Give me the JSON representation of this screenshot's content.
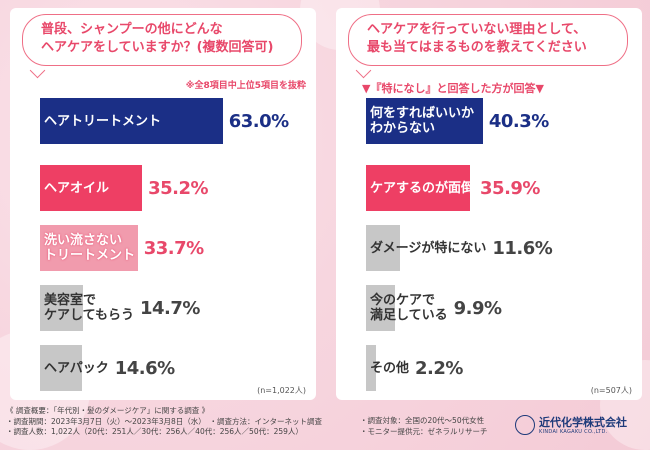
{
  "left": {
    "question": [
      "普段、シャンプーの他にどんな",
      "ヘアケアをしていますか？(複数回答可)"
    ],
    "note": "※全8項目中上位5項目を抜粋",
    "n": "(n=1,022人)"
  },
  "right": {
    "question": [
      "ヘアケアを行っていない理由として、",
      "最も当てはまるものを教えてください"
    ],
    "sub": "▼『特になし』と回答した方が回答▼",
    "n": "(n=507人)"
  },
  "chart_data": [
    {
      "type": "bar",
      "categories": [
        "ヘアトリートメント",
        "ヘアオイル",
        "洗い流さないトリートメント",
        "美容室でケアしてもらう",
        "ヘアパック"
      ],
      "values": [
        63.0,
        35.2,
        33.7,
        14.7,
        14.6
      ],
      "value_labels": [
        "63.0%",
        "35.2%",
        "33.7%",
        "14.7%",
        "14.6%"
      ],
      "colors": [
        "#1b2f86",
        "#ee3f64",
        "#f19bad",
        "#c7c7c7",
        "#c7c7c7"
      ],
      "unit": "%"
    },
    {
      "type": "bar",
      "categories": [
        "何をすればいいかわからない",
        "ケアするのが面倒",
        "ダメージが特にない",
        "今のケアで満足している",
        "その他"
      ],
      "values": [
        40.3,
        35.9,
        11.6,
        9.9,
        2.2
      ],
      "value_labels": [
        "40.3%",
        "35.9%",
        "11.6%",
        "9.9%",
        "2.2%"
      ],
      "colors": [
        "#1b2f86",
        "#ee3f64",
        "#c7c7c7",
        "#c7c7c7",
        "#c7c7c7"
      ],
      "unit": "%"
    }
  ],
  "label_lines": [
    [
      [
        "ヘアトリートメント"
      ],
      [
        "ヘアオイル"
      ],
      [
        "洗い流さない",
        "トリートメント"
      ],
      [
        "美容室で",
        "ケアしてもらう"
      ],
      [
        "ヘアパック"
      ]
    ],
    [
      [
        "何をすればいいか",
        "わからない"
      ],
      [
        "ケアするのが面倒"
      ],
      [
        "ダメージが特にない"
      ],
      [
        "今のケアで",
        "満足している"
      ],
      [
        "その他"
      ]
    ]
  ],
  "footer": {
    "left": [
      "《 調査概要：「年代別・髪のダメージケア」に関する調査 》",
      "・調査期間：2023年3月7日（火）～2023年3月8日（水）　・調査方法：インターネット調査",
      "・調査人数：1,022人（20代：251人／30代：256人／40代：256人／50代：259人）"
    ],
    "right": [
      "・調査対象：全国の20代～50代女性",
      "・モニター提供元：ゼネラルリサーチ"
    ]
  },
  "logo": {
    "name": "近代化学株式会社",
    "en": "KINDAI KAGAKU CO.,LTD."
  }
}
